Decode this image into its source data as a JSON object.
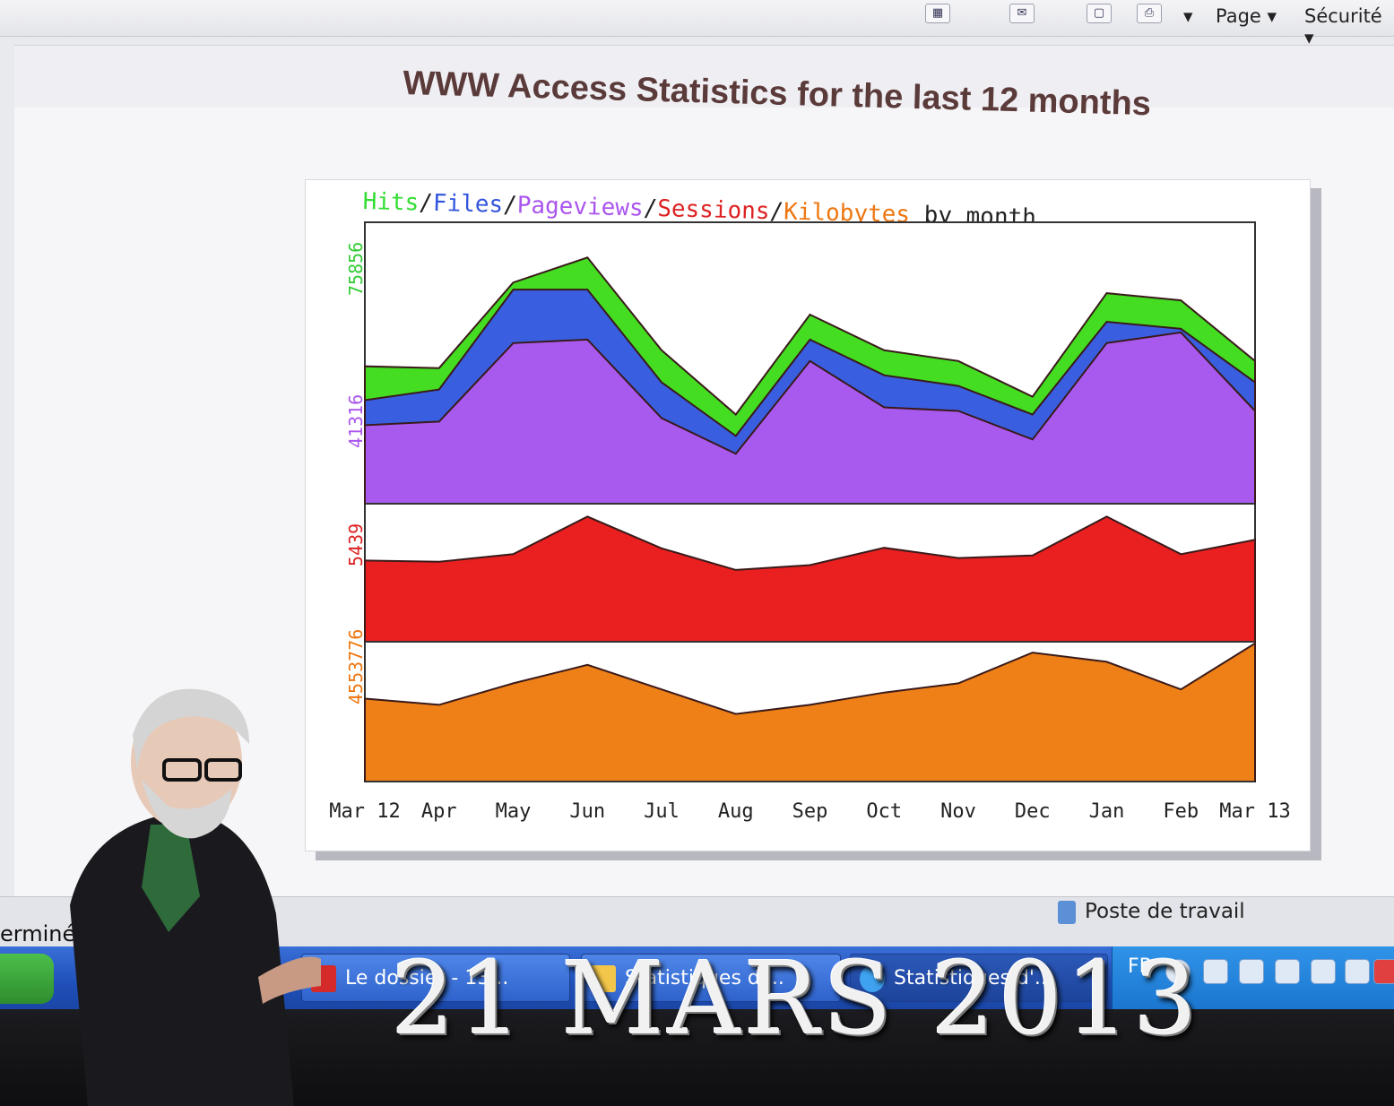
{
  "browser": {
    "menus": [
      "Page",
      "Sécurité"
    ],
    "status_left": "erminé",
    "status_zone": "Poste de travail"
  },
  "page": {
    "title": "WWW Access Statistics for the last 12 months"
  },
  "chart_data": {
    "type": "area",
    "title_parts": [
      {
        "text": "Hits",
        "color": "#33dd33"
      },
      {
        "text": "/",
        "color": "#222222"
      },
      {
        "text": "Files",
        "color": "#3355dd"
      },
      {
        "text": "/",
        "color": "#222222"
      },
      {
        "text": "Pageviews",
        "color": "#aa55ee"
      },
      {
        "text": "/",
        "color": "#222222"
      },
      {
        "text": "Sessions",
        "color": "#dd2222"
      },
      {
        "text": "/",
        "color": "#222222"
      },
      {
        "text": "Kilobytes",
        "color": "#ee7711"
      },
      {
        "text": " by month",
        "color": "#222222"
      }
    ],
    "categories": [
      "Mar 12",
      "Apr",
      "May",
      "Jun",
      "Jul",
      "Aug",
      "Sep",
      "Oct",
      "Nov",
      "Dec",
      "Jan",
      "Feb",
      "Mar 13"
    ],
    "panels": [
      {
        "ymax_label": "75856",
        "ymax_label_color": "#33cc33",
        "ymid_label": "41316",
        "ymid_label_color": "#aa55ee",
        "ymax": 75856,
        "series": [
          {
            "name": "Hits",
            "color": "#44dd22",
            "values": [
              38500,
              38000,
              62000,
              69000,
              43000,
              25000,
              53000,
              43000,
              40000,
              30000,
              59000,
              57000,
              40000
            ]
          },
          {
            "name": "Files",
            "color": "#3a5ee0",
            "values": [
              29000,
              32000,
              60000,
              60000,
              34000,
              19000,
              46000,
              36000,
              33000,
              25000,
              51000,
              49000,
              34000
            ]
          },
          {
            "name": "Pageviews",
            "color": "#a95aee",
            "values": [
              22000,
              23000,
              45000,
              46000,
              24000,
              14000,
              40000,
              27000,
              26000,
              18000,
              45000,
              48000,
              26000
            ]
          }
        ]
      },
      {
        "ymax_label": "5439",
        "ymax_label_color": "#dd2222",
        "ymax": 5439,
        "series": [
          {
            "name": "Sessions",
            "color": "#ea2020",
            "values": [
              3200,
              3150,
              3450,
              4930,
              3680,
              2830,
              3020,
              3700,
              3300,
              3400,
              4930,
              3450,
              4020
            ]
          }
        ]
      },
      {
        "ymax_label": "4553776",
        "ymax_label_color": "#ee7711",
        "ymax": 4553776,
        "series": [
          {
            "name": "Kilobytes",
            "color": "#ef8018",
            "values": [
              2700000,
              2500000,
              3200000,
              3800000,
              3000000,
              2200000,
              2500000,
              2900000,
              3200000,
              4200000,
              3900000,
              3000000,
              4500000
            ]
          }
        ]
      }
    ]
  },
  "taskbar": {
    "tasks": [
      "Le dossier - 13...",
      "Statistiques d'...",
      "Statistiques d'..."
    ],
    "tray_lang": "FR"
  },
  "overlay": {
    "date_text": "21 MARS 2013"
  }
}
